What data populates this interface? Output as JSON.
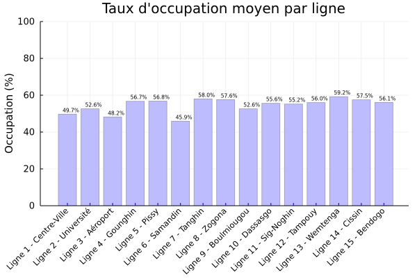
{
  "chart_data": {
    "type": "bar",
    "title": "Taux d'occupation moyen par ligne",
    "xlabel": "",
    "ylabel": "Occupation (%)",
    "ylim": [
      0,
      100
    ],
    "yticks": [
      "0",
      "20",
      "40",
      "60",
      "80",
      "100"
    ],
    "grid": true,
    "legend": "none",
    "bar_color": "#bcbcff",
    "categories": [
      "Ligne 1 - Centre-Ville",
      "Ligne 2 - Université",
      "Ligne 3 - Aéroport",
      "Ligne 4 - Gounghin",
      "Ligne 5 - Pissy",
      "Ligne 6 - Samandin",
      "Ligne 7 - Tanghin",
      "Ligne 8 - Zogona",
      "Ligne 9 - Boulmiougou",
      "Ligne 10 - Dassasgo",
      "Ligne 11 - Sig-Noghin",
      "Ligne 12 - Tampouy",
      "Ligne 13 - Wemtenga",
      "Ligne 14 - Cissin",
      "Ligne 15 - Bendogo"
    ],
    "values": [
      49.7,
      52.6,
      48.2,
      56.7,
      56.8,
      45.9,
      58.0,
      57.6,
      52.6,
      55.6,
      55.2,
      56.0,
      59.2,
      57.5,
      56.1
    ],
    "data_labels": [
      "49.7%",
      "52.6%",
      "48.2%",
      "56.7%",
      "56.8%",
      "45.9%",
      "58.0%",
      "57.6%",
      "52.6%",
      "55.6%",
      "55.2%",
      "56.0%",
      "59.2%",
      "57.5%",
      "56.1%"
    ]
  }
}
